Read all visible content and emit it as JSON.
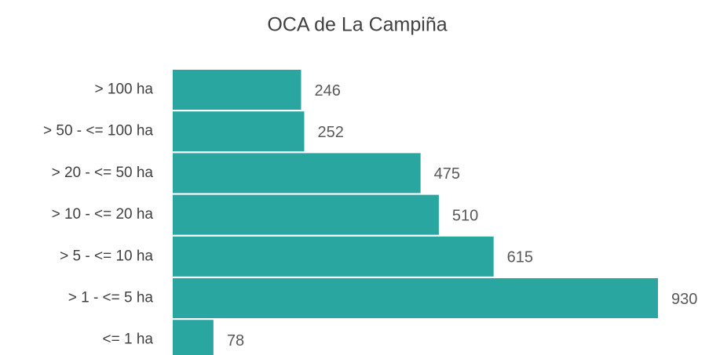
{
  "chart_data": {
    "type": "hbar",
    "title": "OCA de La Campiña",
    "categories": [
      "> 100 ha",
      "> 50 - <= 100 ha",
      "> 20 - <= 50 ha",
      "> 10 - <= 20 ha",
      "> 5 - <= 10 ha",
      "> 1 - <= 5 ha",
      "<= 1 ha"
    ],
    "values": [
      246,
      252,
      475,
      510,
      615,
      930,
      78
    ],
    "color": "#2aa6a0"
  }
}
